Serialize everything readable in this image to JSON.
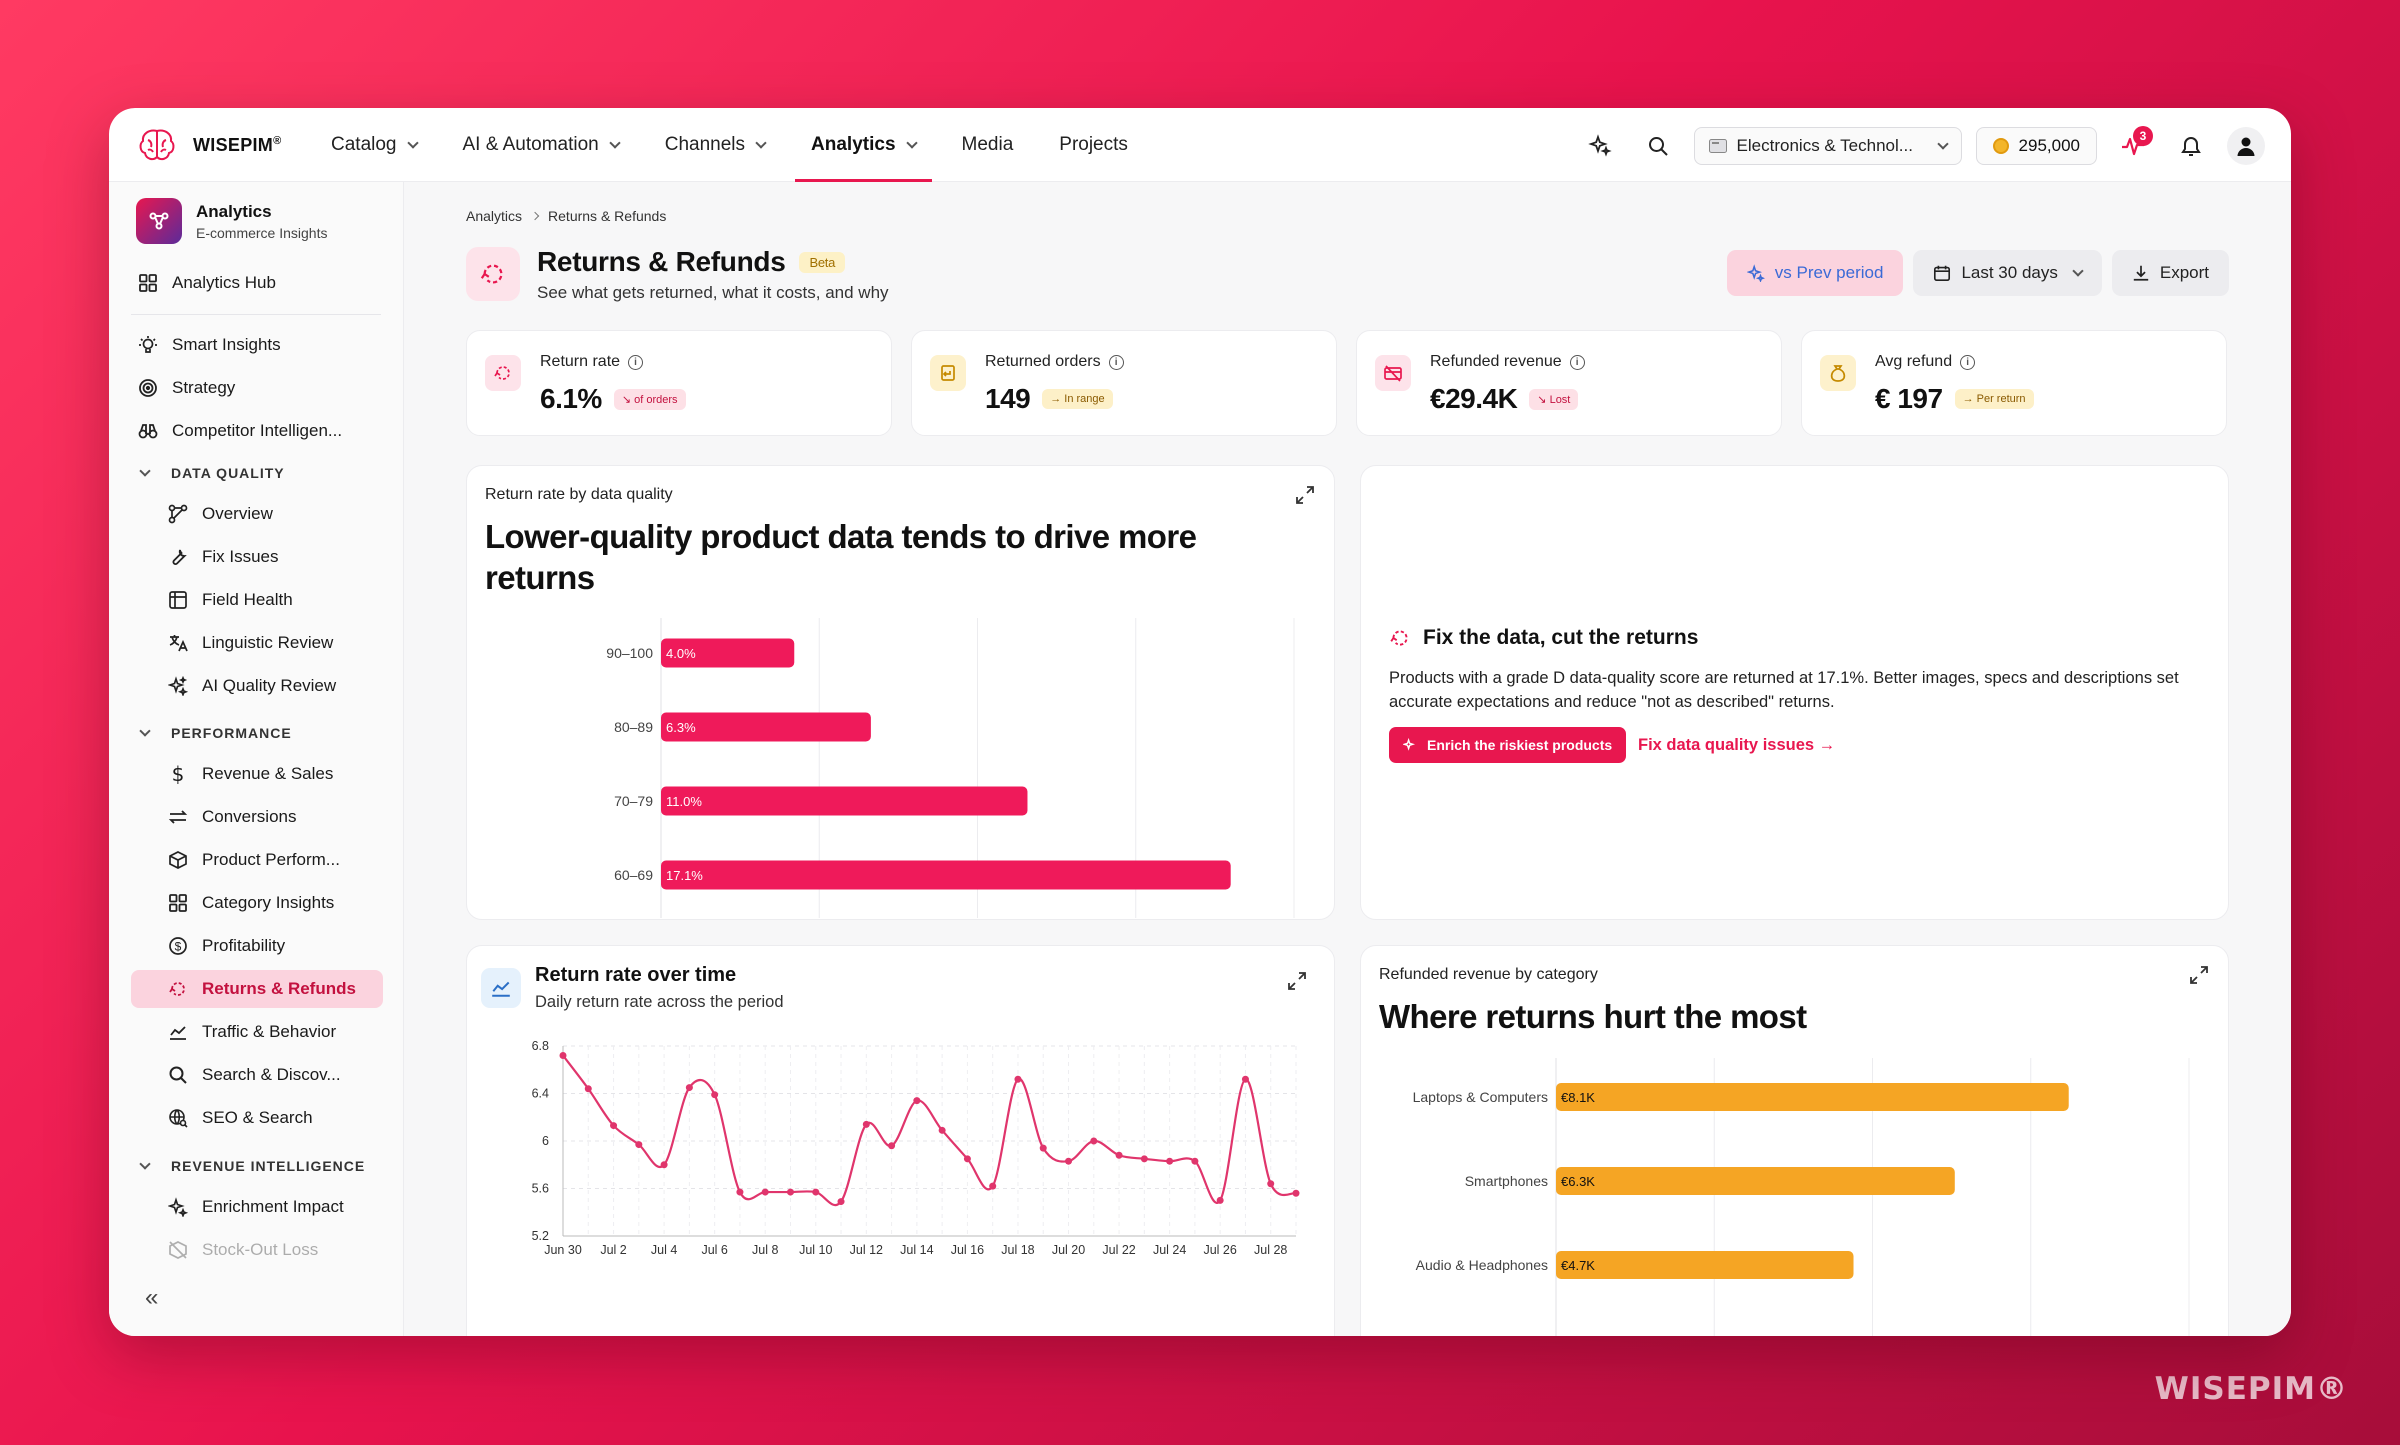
{
  "brand": {
    "name": "WISEPIM",
    "reg": "®",
    "watermark": "WISEPIM®"
  },
  "nav": {
    "items": [
      {
        "label": "Catalog",
        "dropdown": true
      },
      {
        "label": "AI & Automation",
        "dropdown": true
      },
      {
        "label": "Channels",
        "dropdown": true
      },
      {
        "label": "Analytics",
        "dropdown": true,
        "active": true
      },
      {
        "label": "Media",
        "dropdown": false
      },
      {
        "label": "Projects",
        "dropdown": false
      }
    ]
  },
  "topbar": {
    "store": "Electronics & Technol...",
    "credits": "295,000",
    "notification_count": "3",
    "icons": [
      "sparkles-icon",
      "search-icon",
      "activity-icon",
      "bell-icon",
      "user-icon"
    ]
  },
  "sidebar": {
    "header": {
      "title": "Analytics",
      "subtitle": "E-commerce Insights"
    },
    "hub": "Analytics Hub",
    "top_items": [
      "Smart Insights",
      "Strategy",
      "Competitor Intelligen..."
    ],
    "sections": [
      {
        "title": "DATA QUALITY",
        "items": [
          "Overview",
          "Fix Issues",
          "Field Health",
          "Linguistic Review",
          "AI Quality Review"
        ]
      },
      {
        "title": "PERFORMANCE",
        "items": [
          "Revenue & Sales",
          "Conversions",
          "Product Perform...",
          "Category Insights",
          "Profitability",
          "Returns & Refunds",
          "Traffic & Behavior",
          "Search & Discov...",
          "SEO & Search"
        ]
      },
      {
        "title": "REVENUE INTELLIGENCE",
        "items": [
          "Enrichment Impact",
          "Stock-Out Loss"
        ]
      }
    ],
    "active_item": "Returns & Refunds",
    "collapse": "«"
  },
  "breadcrumb": [
    "Analytics",
    "Returns & Refunds"
  ],
  "page": {
    "title": "Returns & Refunds",
    "badge": "Beta",
    "subtitle": "See what gets returned, what it costs, and why"
  },
  "header_buttons": {
    "compare": "vs Prev period",
    "range": "Last 30 days",
    "export": "Export"
  },
  "kpis": [
    {
      "label": "Return rate",
      "value": "6.1%",
      "tag": "↘ of orders",
      "tag_style": "red",
      "icon": "return-icon",
      "icon_bg": "#fde3ea"
    },
    {
      "label": "Returned orders",
      "value": "149",
      "tag": "→ In range",
      "tag_style": "amber",
      "icon": "package-return-icon",
      "icon_bg": "#fdf1cc"
    },
    {
      "label": "Refunded revenue",
      "value": "€29.4K",
      "tag": "↘ Lost",
      "tag_style": "red",
      "icon": "card-off-icon",
      "icon_bg": "#fde3ea"
    },
    {
      "label": "Avg refund",
      "value": "€ 197",
      "tag": "→ Per return",
      "tag_style": "amber",
      "icon": "money-bag-icon",
      "icon_bg": "#fdf1cc"
    }
  ],
  "quality_card": {
    "kicker": "Return rate by data quality",
    "headline": "Lower-quality product data tends to drive more returns"
  },
  "fix_card": {
    "title": "Fix the data, cut the returns",
    "body": "Products with a grade D data-quality score are returned at 17.1%. Better images, specs and descriptions set accurate expectations and reduce \"not as described\" returns.",
    "button": "Enrich the riskiest products",
    "link": "Fix data quality issues →"
  },
  "timeseries_card": {
    "title": "Return rate over time",
    "subtitle": "Daily return rate across the period"
  },
  "category_card": {
    "kicker": "Refunded revenue by category",
    "headline": "Where returns hurt the most"
  },
  "chart_data": [
    {
      "type": "bar",
      "orientation": "horizontal",
      "categories": [
        "90–100",
        "80–89",
        "70–79",
        "60–69"
      ],
      "values": [
        4.0,
        6.3,
        11.0,
        17.1
      ],
      "labels": [
        "4.0%",
        "6.3%",
        "11.0%",
        "17.1%"
      ],
      "xlim": [
        0,
        19
      ],
      "color": "#ef1a5a",
      "grid": true
    },
    {
      "type": "line",
      "x_tick_labels": [
        "Jun 30",
        "Jul 2",
        "Jul 4",
        "Jul 6",
        "Jul 8",
        "Jul 10",
        "Jul 12",
        "Jul 14",
        "Jul 16",
        "Jul 18",
        "Jul 20",
        "Jul 22",
        "Jul 24",
        "Jul 26",
        "Jul 28"
      ],
      "y_ticks": [
        5.2,
        5.6,
        6,
        6.4,
        6.8
      ],
      "ylim": [
        5.2,
        6.8
      ],
      "values": [
        6.72,
        6.44,
        6.13,
        5.97,
        5.8,
        6.45,
        6.39,
        5.57,
        5.57,
        5.57,
        5.57,
        5.49,
        6.14,
        5.96,
        6.34,
        6.09,
        5.85,
        5.62,
        6.52,
        5.94,
        5.83,
        6.0,
        5.88,
        5.85,
        5.83,
        5.83,
        5.5,
        6.52,
        5.64,
        5.56
      ],
      "color": "#e0356c",
      "grid": true
    },
    {
      "type": "bar",
      "orientation": "horizontal",
      "categories": [
        "Laptops & Computers",
        "Smartphones",
        "Audio & Headphones"
      ],
      "values": [
        8.1,
        6.3,
        4.7
      ],
      "labels": [
        "€8.1K",
        "€6.3K",
        "€4.7K"
      ],
      "xlim": [
        0,
        10
      ],
      "color": "#f5a524",
      "grid": true
    }
  ]
}
